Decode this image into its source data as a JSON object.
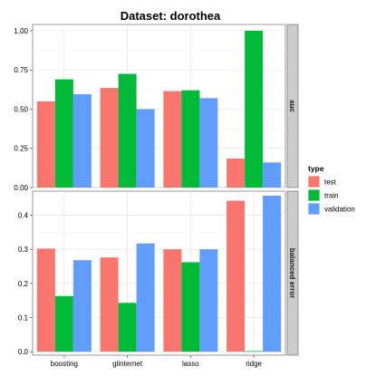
{
  "chart_data": {
    "type": "bar",
    "title": "Dataset: dorothea",
    "categories": [
      "boosting",
      "glinternet",
      "lasso",
      "ridge"
    ],
    "legend": {
      "title": "type",
      "position": "right"
    },
    "colors": {
      "test": "#F8766D",
      "train": "#00BA38",
      "validation": "#619CFF"
    },
    "grid": true,
    "facets": [
      {
        "label": "auc",
        "ylim": [
          0,
          1.04
        ],
        "ticks": [
          "0.00",
          "0.25",
          "0.50",
          "0.75",
          "1.00"
        ],
        "tick_values": [
          0,
          0.25,
          0.5,
          0.75,
          1.0
        ],
        "series": [
          {
            "name": "test",
            "values": [
              0.55,
              0.635,
              0.615,
              0.185
            ]
          },
          {
            "name": "train",
            "values": [
              0.69,
              0.725,
              0.62,
              1.0
            ]
          },
          {
            "name": "validation",
            "values": [
              0.595,
              0.5,
              0.57,
              0.16
            ]
          }
        ]
      },
      {
        "label": "balanced error",
        "ylim": [
          -0.01,
          0.47
        ],
        "ticks": [
          "0.0",
          "0.1",
          "0.2",
          "0.3",
          "0.4"
        ],
        "tick_values": [
          0,
          0.1,
          0.2,
          0.3,
          0.4
        ],
        "series": [
          {
            "name": "test",
            "values": [
              0.302,
              0.276,
              0.3,
              0.442
            ]
          },
          {
            "name": "train",
            "values": [
              0.163,
              0.143,
              0.262,
              0.002
            ]
          },
          {
            "name": "validation",
            "values": [
              0.268,
              0.317,
              0.3,
              0.457
            ]
          }
        ]
      }
    ]
  }
}
